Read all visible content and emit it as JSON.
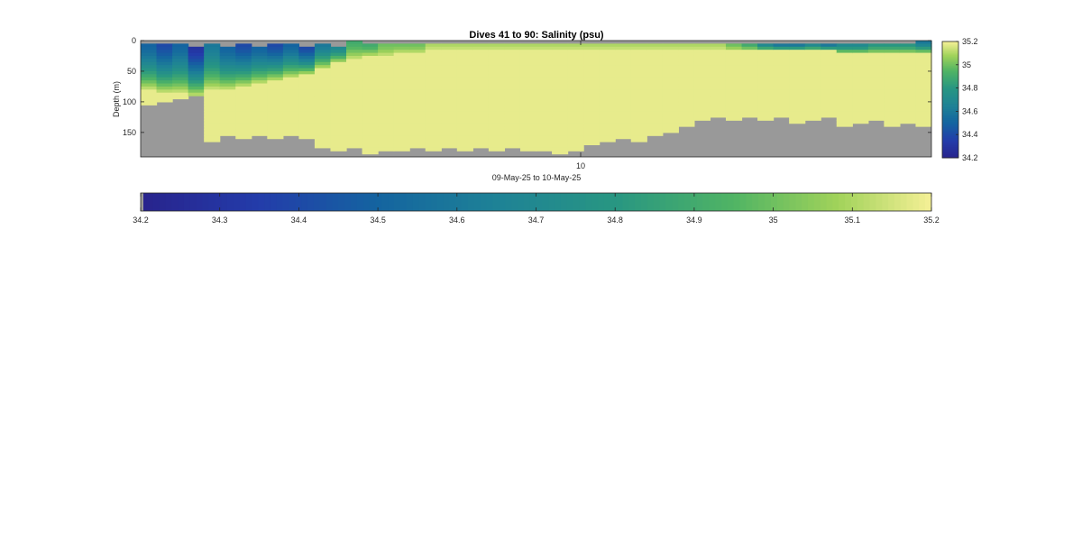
{
  "chart_data": {
    "type": "heatmap",
    "title": "Dives 41 to 90: Salinity (psu)",
    "xlabel": "09-May-25 to 10-May-25",
    "ylabel": "Depth (m)",
    "x_ticks": [
      "10"
    ],
    "y_ticks": [
      "0",
      "50",
      "100",
      "150"
    ],
    "ylim": [
      0,
      190
    ],
    "ydir": "reverse",
    "dives": [
      41,
      90
    ],
    "bin_depth_m": 5,
    "colormap": "parula",
    "clim": [
      34.2,
      35.2
    ],
    "nodata_color": "#999999",
    "colorbar_vertical_ticks": [
      "35.2",
      "35",
      "34.8",
      "34.6",
      "34.4",
      "34.2"
    ],
    "colorbar_horizontal_ticks": [
      "34.2",
      "34.3",
      "34.4",
      "34.5",
      "34.6",
      "34.7",
      "34.8",
      "34.9",
      "35",
      "35.1",
      "35.2"
    ],
    "surface_gap_m": [
      5,
      5,
      5,
      10,
      5,
      10,
      5,
      10,
      5,
      5,
      10,
      5,
      10,
      0,
      5,
      5,
      5,
      5,
      5,
      5,
      5,
      5,
      5,
      5,
      5,
      5,
      5,
      5,
      5,
      5,
      5,
      5,
      5,
      5,
      5,
      5,
      5,
      5,
      5,
      5,
      5,
      5,
      5,
      5,
      5,
      5,
      5,
      5,
      5,
      0
    ],
    "max_depth_m": [
      105,
      100,
      95,
      90,
      165,
      155,
      160,
      155,
      160,
      155,
      160,
      175,
      180,
      175,
      185,
      180,
      180,
      175,
      180,
      175,
      180,
      175,
      180,
      175,
      180,
      180,
      185,
      180,
      170,
      165,
      160,
      165,
      155,
      150,
      140,
      130,
      125,
      130,
      125,
      130,
      125,
      135,
      130,
      125,
      140,
      135,
      130,
      140,
      135,
      140
    ],
    "upper_layer_bottom_m": [
      80,
      85,
      85,
      90,
      80,
      80,
      75,
      70,
      65,
      60,
      55,
      45,
      35,
      30,
      25,
      25,
      20,
      20,
      15,
      15,
      15,
      15,
      15,
      15,
      15,
      15,
      15,
      15,
      15,
      15,
      15,
      15,
      15,
      15,
      15,
      15,
      15,
      15,
      15,
      15,
      15,
      15,
      15,
      15,
      20,
      20,
      20,
      20,
      20,
      20
    ],
    "surface_salinity_psu": [
      34.5,
      34.4,
      34.5,
      34.3,
      34.6,
      34.5,
      34.4,
      34.5,
      34.4,
      34.5,
      34.4,
      34.6,
      34.7,
      34.9,
      34.9,
      35.0,
      35.0,
      35.0,
      35.1,
      35.1,
      35.1,
      35.1,
      35.1,
      35.1,
      35.1,
      35.1,
      35.1,
      35.1,
      35.1,
      35.1,
      35.1,
      35.1,
      35.1,
      35.1,
      35.1,
      35.1,
      35.1,
      35.0,
      34.9,
      34.7,
      34.6,
      34.6,
      34.7,
      34.6,
      34.7,
      34.7,
      34.8,
      34.8,
      34.8,
      34.6
    ],
    "interior_salinity_psu": [
      35.18,
      35.18,
      35.18,
      35.18,
      35.18,
      35.18,
      35.18,
      35.18,
      35.18,
      35.18,
      35.18,
      35.18,
      35.18,
      35.18,
      35.18,
      35.18,
      35.18,
      35.18,
      35.18,
      35.18,
      35.18,
      35.18,
      35.18,
      35.18,
      35.18,
      35.18,
      35.18,
      35.18,
      35.18,
      35.18,
      35.18,
      35.18,
      35.18,
      35.18,
      35.18,
      35.18,
      35.18,
      35.18,
      35.18,
      35.18,
      35.18,
      35.18,
      35.18,
      35.18,
      35.18,
      35.18,
      35.18,
      35.18,
      35.18,
      35.18
    ]
  }
}
